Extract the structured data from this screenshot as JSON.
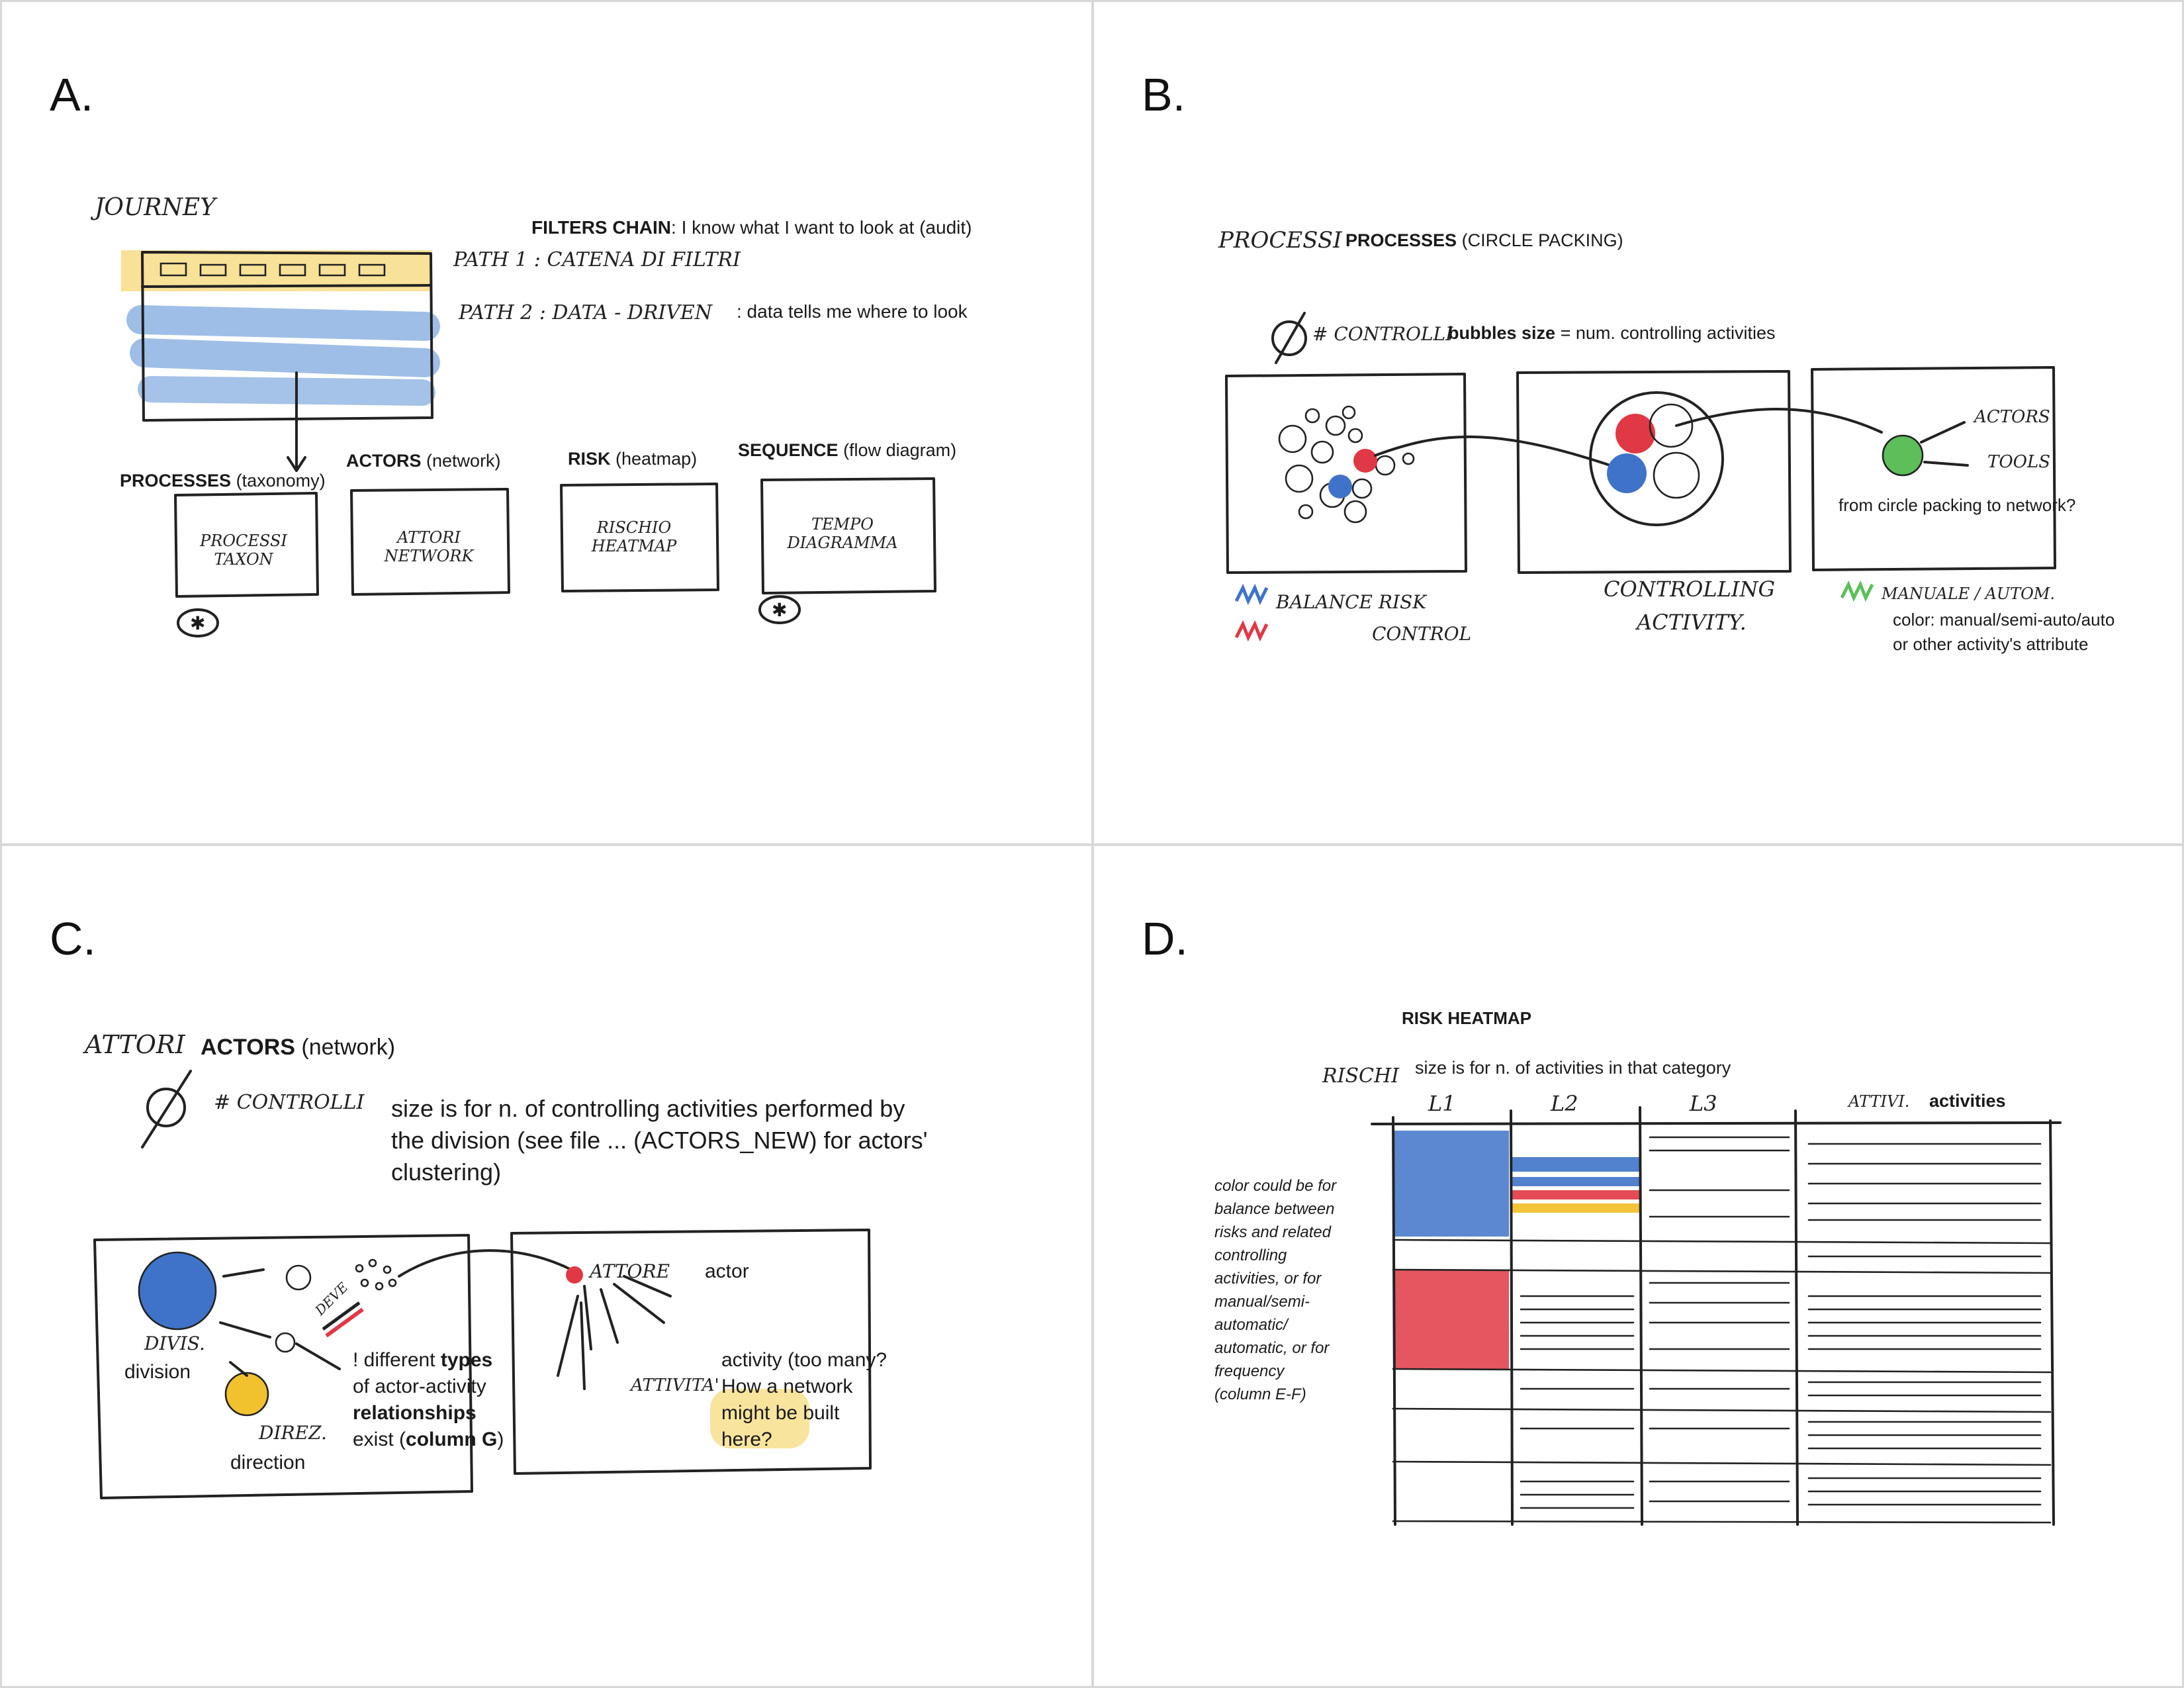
{
  "panels": {
    "a": {
      "label": "A.",
      "journey": "JOURNEY",
      "filters_chain_bold": "FILTERS CHAIN",
      "filters_chain_rest": ": I know what I want to look at (audit)",
      "path1": "PATH 1 : CATENA DI FILTRI",
      "path2": "PATH 2 : DATA - DRIVEN",
      "path2_note": ": data tells me where to look",
      "views": [
        {
          "title": "PROCESSES",
          "sub": "(taxonomy)",
          "box": "PROCESSI TAXON"
        },
        {
          "title": "ACTORS",
          "sub": "(network)",
          "box": "ATTORI NETWORK"
        },
        {
          "title": "RISK",
          "sub": "(heatmap)",
          "box": "RISCHIO HEATMAP"
        },
        {
          "title": "SEQUENCE",
          "sub": "(flow diagram)",
          "box": "TEMPO DIAGRAMMA"
        }
      ],
      "star_mark": "✱"
    },
    "b": {
      "label": "B.",
      "processi": "PROCESSI",
      "title_bold": "PROCESSES",
      "title_rest": "(CIRCLE PACKING)",
      "controlli": "# CONTROLLI",
      "bubbles_bold": "bubbles size",
      "bubbles_rest": "= num. controlling activities",
      "actors": "ACTORS",
      "tools": "TOOLS",
      "network_note": "from circle packing to network?",
      "legend_balance": "BALANCE RISK",
      "legend_control": "CONTROL",
      "controlling": "CONTROLLING",
      "activity": "ACTIVITY.",
      "manuale": "MANUALE / AUTOM.",
      "color_note_1": "color: manual/semi-auto/auto",
      "color_note_2": "or other activity's attribute"
    },
    "c": {
      "label": "C.",
      "attori": "ATTORI",
      "title_bold": "ACTORS",
      "title_rest": "(network)",
      "controlli": "# CONTROLLI",
      "size_note": [
        "size is for n. of controlling activities performed by",
        "the division (see file ... (ACTORS_NEW) for actors'",
        "clustering)"
      ],
      "divis": "DIVIS.",
      "division": "division",
      "direz": "DIREZ.",
      "direction": "direction",
      "deve": "DEVE",
      "types_l1a": "! different ",
      "types_l1b": "types",
      "types_l2": "of actor-activity",
      "types_l3": "relationships",
      "types_l4a": "exist (",
      "types_l4b": "column G",
      "types_l4c": ")",
      "attore": "ATTORE",
      "actor": "actor",
      "attivita": "ATTIVITA'",
      "activity_note": [
        "activity (too many?",
        "How a network",
        "might be built",
        "here?"
      ]
    },
    "d": {
      "label": "D.",
      "title": "RISK HEATMAP",
      "rischi": "RISCHI",
      "size_note": "size is for n. of activities in that category",
      "cols": [
        "L1",
        "L2",
        "L3",
        "ATTIVI."
      ],
      "activities": "activities",
      "color_note": [
        "color could be for",
        "balance between",
        "risks and related",
        "controlling",
        "activities, or for",
        "manual/semi-",
        "automatic/",
        "automatic, or for",
        "frequency",
        "(column E-F)"
      ]
    }
  },
  "colors": {
    "blue": "#3f73c9",
    "light_blue": "#9fc0e8",
    "red": "#e03844",
    "yellow": "#f2c12e",
    "highlight_yellow": "#f7dd86",
    "green": "#5cbf5a",
    "ink": "#222222"
  }
}
